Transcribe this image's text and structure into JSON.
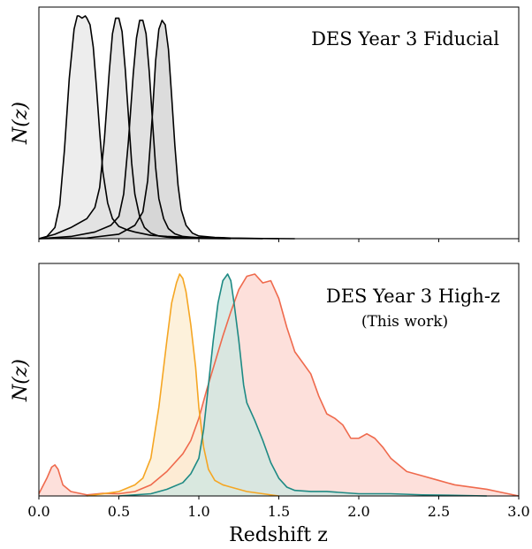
{
  "chart_data": [
    {
      "type": "area",
      "title": "DES Year 3 Fiducial",
      "ylabel": "N(z)",
      "xlabel": "",
      "xlim": [
        0.0,
        3.0
      ],
      "yticks": "none",
      "xtick_labels_shown": false,
      "series": [
        {
          "fill": "#e8e8e8",
          "line": "#000000",
          "x": [
            0.0,
            0.05,
            0.1,
            0.13,
            0.16,
            0.19,
            0.22,
            0.24,
            0.25,
            0.27,
            0.29,
            0.3,
            0.32,
            0.34,
            0.36,
            0.38,
            0.4,
            0.43,
            0.46,
            0.5,
            0.55,
            0.6,
            0.7,
            0.8,
            1.0,
            1.2,
            1.5
          ],
          "y": [
            0.0,
            0.01,
            0.05,
            0.15,
            0.4,
            0.72,
            0.94,
            1.0,
            1.0,
            0.99,
            1.0,
            0.99,
            0.96,
            0.86,
            0.68,
            0.48,
            0.3,
            0.16,
            0.09,
            0.055,
            0.04,
            0.03,
            0.015,
            0.01,
            0.005,
            0.002,
            0.0
          ]
        },
        {
          "fill": "#e0e0e0",
          "line": "#000000",
          "x": [
            0.0,
            0.1,
            0.2,
            0.3,
            0.35,
            0.38,
            0.41,
            0.44,
            0.46,
            0.48,
            0.5,
            0.52,
            0.54,
            0.56,
            0.58,
            0.6,
            0.63,
            0.66,
            0.7,
            0.75,
            0.8,
            0.9,
            1.0,
            1.2
          ],
          "y": [
            0.0,
            0.02,
            0.05,
            0.09,
            0.14,
            0.23,
            0.45,
            0.75,
            0.92,
            0.99,
            0.99,
            0.93,
            0.76,
            0.55,
            0.34,
            0.2,
            0.1,
            0.05,
            0.025,
            0.012,
            0.007,
            0.003,
            0.001,
            0.0
          ]
        },
        {
          "fill": "#dadada",
          "line": "#000000",
          "x": [
            0.0,
            0.2,
            0.35,
            0.45,
            0.5,
            0.53,
            0.56,
            0.59,
            0.61,
            0.63,
            0.65,
            0.67,
            0.69,
            0.71,
            0.73,
            0.75,
            0.78,
            0.81,
            0.85,
            0.9,
            1.0,
            1.2,
            1.4
          ],
          "y": [
            0.0,
            0.01,
            0.03,
            0.06,
            0.1,
            0.2,
            0.44,
            0.74,
            0.9,
            0.98,
            0.98,
            0.92,
            0.75,
            0.53,
            0.32,
            0.18,
            0.09,
            0.045,
            0.022,
            0.01,
            0.004,
            0.001,
            0.0
          ]
        },
        {
          "fill": "#d3d3d3",
          "line": "#000000",
          "x": [
            0.0,
            0.3,
            0.5,
            0.6,
            0.65,
            0.68,
            0.71,
            0.73,
            0.75,
            0.77,
            0.79,
            0.81,
            0.83,
            0.85,
            0.87,
            0.89,
            0.92,
            0.96,
            1.0,
            1.1,
            1.2,
            1.4,
            1.6
          ],
          "y": [
            0.0,
            0.003,
            0.02,
            0.06,
            0.12,
            0.26,
            0.56,
            0.8,
            0.94,
            0.98,
            0.96,
            0.85,
            0.64,
            0.42,
            0.24,
            0.13,
            0.06,
            0.025,
            0.012,
            0.006,
            0.003,
            0.001,
            0.0
          ]
        }
      ]
    },
    {
      "type": "area",
      "title": "DES Year 3 High-z",
      "subtitle": "(This work)",
      "ylabel": "N(z)",
      "xlabel": "Redshift z",
      "xlim": [
        0.0,
        3.0
      ],
      "xticks": [
        "0.0",
        "0.5",
        "1.0",
        "1.5",
        "2.0",
        "2.5",
        "3.0"
      ],
      "yticks": "none",
      "series": [
        {
          "fill": "#fdd8d2",
          "line": "#ef6a4d",
          "x": [
            0.0,
            0.05,
            0.08,
            0.1,
            0.12,
            0.15,
            0.2,
            0.3,
            0.4,
            0.5,
            0.6,
            0.7,
            0.8,
            0.9,
            0.95,
            1.0,
            1.05,
            1.1,
            1.15,
            1.2,
            1.25,
            1.3,
            1.35,
            1.4,
            1.45,
            1.5,
            1.55,
            1.6,
            1.65,
            1.7,
            1.75,
            1.8,
            1.85,
            1.9,
            1.95,
            2.0,
            2.05,
            2.1,
            2.15,
            2.2,
            2.3,
            2.4,
            2.5,
            2.6,
            2.7,
            2.8,
            2.9,
            3.0
          ],
          "y": [
            0.01,
            0.08,
            0.13,
            0.14,
            0.12,
            0.05,
            0.02,
            0.005,
            0.012,
            0.01,
            0.02,
            0.05,
            0.11,
            0.19,
            0.25,
            0.35,
            0.48,
            0.6,
            0.72,
            0.83,
            0.93,
            0.99,
            1.0,
            0.96,
            0.97,
            0.89,
            0.76,
            0.65,
            0.6,
            0.55,
            0.45,
            0.37,
            0.35,
            0.32,
            0.26,
            0.26,
            0.28,
            0.26,
            0.22,
            0.17,
            0.11,
            0.09,
            0.07,
            0.05,
            0.04,
            0.03,
            0.015,
            0.0
          ]
        },
        {
          "fill": "#fdeed2",
          "line": "#f5a623",
          "x": [
            0.3,
            0.4,
            0.5,
            0.6,
            0.65,
            0.7,
            0.75,
            0.8,
            0.83,
            0.86,
            0.88,
            0.9,
            0.92,
            0.95,
            0.98,
            1.0,
            1.03,
            1.06,
            1.1,
            1.15,
            1.2,
            1.3,
            1.4,
            1.5
          ],
          "y": [
            0.0,
            0.01,
            0.02,
            0.05,
            0.08,
            0.17,
            0.4,
            0.7,
            0.87,
            0.96,
            1.0,
            0.98,
            0.92,
            0.77,
            0.58,
            0.4,
            0.22,
            0.12,
            0.07,
            0.05,
            0.04,
            0.02,
            0.01,
            0.0
          ]
        },
        {
          "fill": "#cfe7e1",
          "line": "#1e8a84",
          "x": [
            0.5,
            0.7,
            0.8,
            0.9,
            0.95,
            1.0,
            1.03,
            1.06,
            1.09,
            1.12,
            1.15,
            1.18,
            1.2,
            1.22,
            1.25,
            1.28,
            1.3,
            1.35,
            1.4,
            1.45,
            1.5,
            1.55,
            1.6,
            1.7,
            1.8,
            1.9,
            2.0,
            2.2,
            2.4,
            2.6,
            2.8
          ],
          "y": [
            0.0,
            0.01,
            0.03,
            0.06,
            0.1,
            0.17,
            0.3,
            0.5,
            0.7,
            0.87,
            0.97,
            1.0,
            0.97,
            0.87,
            0.7,
            0.5,
            0.42,
            0.34,
            0.25,
            0.15,
            0.08,
            0.04,
            0.025,
            0.02,
            0.02,
            0.015,
            0.01,
            0.01,
            0.005,
            0.003,
            0.0
          ]
        }
      ]
    }
  ]
}
